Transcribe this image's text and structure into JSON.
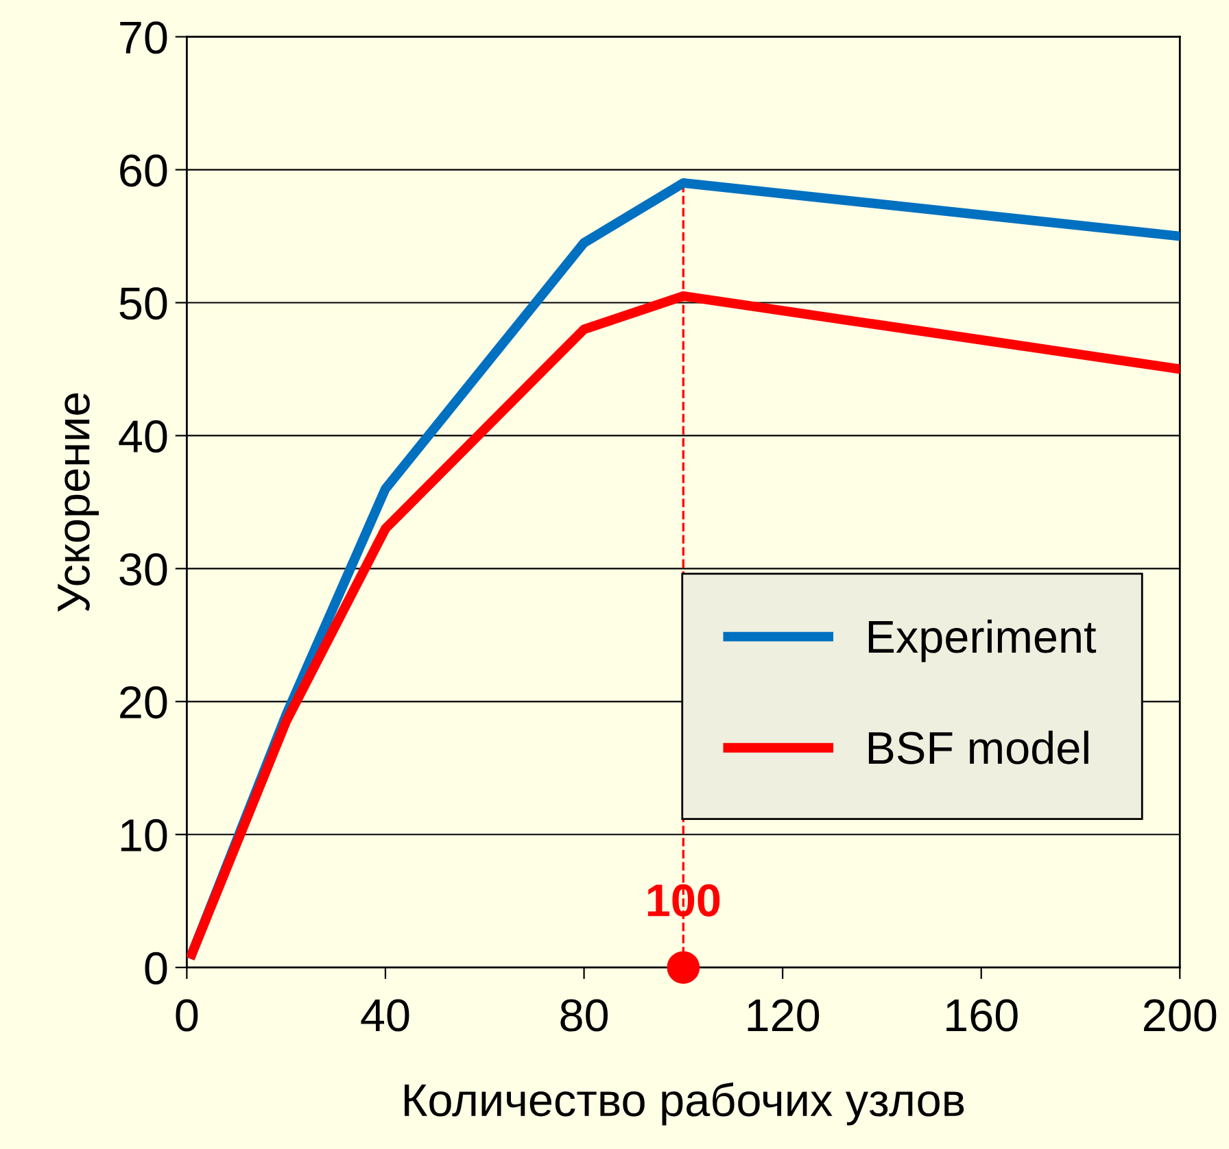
{
  "chart_data": {
    "type": "line",
    "xlabel": "Количество рабочих узлов",
    "ylabel": "Ускорение",
    "x": [
      1,
      20,
      40,
      80,
      100,
      200
    ],
    "series": [
      {
        "name": "Experiment",
        "color": "#0070c0",
        "marker": "none",
        "values": [
          1,
          19,
          36,
          54.5,
          59,
          55
        ]
      },
      {
        "name": "BSF model",
        "color": "#ff0000",
        "marker": "none",
        "values": [
          1,
          18.5,
          33,
          48,
          50.5,
          45
        ]
      },
      {
        "type": "scatter",
        "x": [
          100
        ],
        "color": "#ff0000",
        "values": [
          0
        ],
        "marker": "circle"
      }
    ],
    "xlim": [
      0,
      200
    ],
    "xticks": [
      0,
      40,
      80,
      120,
      160,
      200
    ],
    "ylim": [
      0,
      70
    ],
    "yticks": [
      0,
      10,
      20,
      30,
      40,
      50,
      60,
      70
    ],
    "grid": "y",
    "legend": "bottom right",
    "line_style": "solid",
    "ref_lines": [
      {
        "axis": "x",
        "value": 100,
        "label": "100",
        "color": "#ff0000",
        "line_style": "dashed"
      }
    ]
  }
}
